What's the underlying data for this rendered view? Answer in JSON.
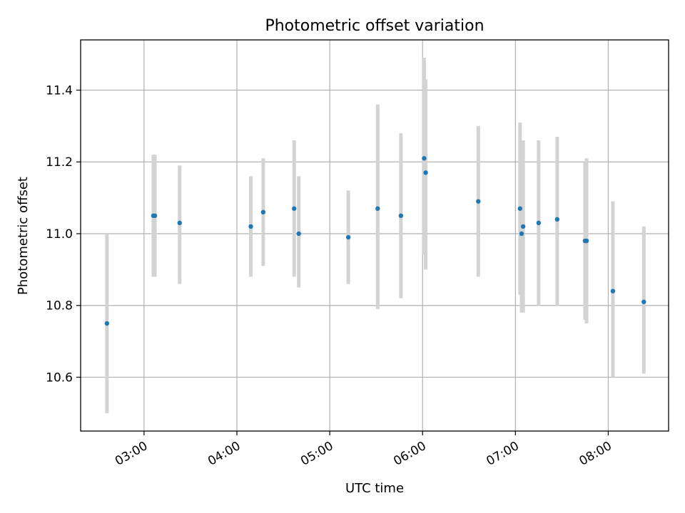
{
  "chart_data": {
    "type": "scatter",
    "title": "Photometric offset variation",
    "xlabel": "UTC time",
    "ylabel": "Photometric offset",
    "x_is_time": true,
    "xlim": [
      "02:19",
      "08:39"
    ],
    "ylim": [
      10.45,
      11.54
    ],
    "x_ticks": [
      "03:00",
      "04:00",
      "05:00",
      "06:00",
      "07:00",
      "08:00"
    ],
    "y_ticks": [
      10.6,
      10.8,
      11.0,
      11.2,
      11.4
    ],
    "y_tick_labels": [
      "10.6",
      "10.8",
      "11.0",
      "11.2",
      "11.4"
    ],
    "grid": true,
    "point_color": "#1f77b4",
    "errorbar_color": "#d3d3d3",
    "points": [
      {
        "t": "02:36",
        "y": 10.75,
        "lo": 10.5,
        "hi": 11.0
      },
      {
        "t": "03:06",
        "y": 11.05,
        "lo": 10.88,
        "hi": 11.22
      },
      {
        "t": "03:07",
        "y": 11.05,
        "lo": 10.88,
        "hi": 11.22
      },
      {
        "t": "03:23",
        "y": 11.03,
        "lo": 10.86,
        "hi": 11.19
      },
      {
        "t": "04:09",
        "y": 11.02,
        "lo": 10.88,
        "hi": 11.16
      },
      {
        "t": "04:17",
        "y": 11.06,
        "lo": 10.91,
        "hi": 11.21
      },
      {
        "t": "04:37",
        "y": 11.07,
        "lo": 10.88,
        "hi": 11.26
      },
      {
        "t": "04:40",
        "y": 11.0,
        "lo": 10.85,
        "hi": 11.16
      },
      {
        "t": "05:12",
        "y": 10.99,
        "lo": 10.86,
        "hi": 11.12
      },
      {
        "t": "05:31",
        "y": 11.07,
        "lo": 10.79,
        "hi": 11.36
      },
      {
        "t": "05:46",
        "y": 11.05,
        "lo": 10.82,
        "hi": 11.28
      },
      {
        "t": "06:01",
        "y": 11.21,
        "lo": 10.94,
        "hi": 11.49
      },
      {
        "t": "06:02",
        "y": 11.17,
        "lo": 10.9,
        "hi": 11.43
      },
      {
        "t": "06:36",
        "y": 11.09,
        "lo": 10.88,
        "hi": 11.3
      },
      {
        "t": "07:03",
        "y": 11.07,
        "lo": 10.83,
        "hi": 11.31
      },
      {
        "t": "07:04",
        "y": 11.0,
        "lo": 10.78,
        "hi": 11.22
      },
      {
        "t": "07:05",
        "y": 11.02,
        "lo": 10.78,
        "hi": 11.26
      },
      {
        "t": "07:15",
        "y": 11.03,
        "lo": 10.8,
        "hi": 11.26
      },
      {
        "t": "07:27",
        "y": 11.04,
        "lo": 10.8,
        "hi": 11.27
      },
      {
        "t": "07:45",
        "y": 10.98,
        "lo": 10.76,
        "hi": 11.2
      },
      {
        "t": "07:46",
        "y": 10.98,
        "lo": 10.75,
        "hi": 11.21
      },
      {
        "t": "08:03",
        "y": 10.84,
        "lo": 10.6,
        "hi": 11.09
      },
      {
        "t": "08:23",
        "y": 10.81,
        "lo": 10.61,
        "hi": 11.02
      }
    ]
  }
}
